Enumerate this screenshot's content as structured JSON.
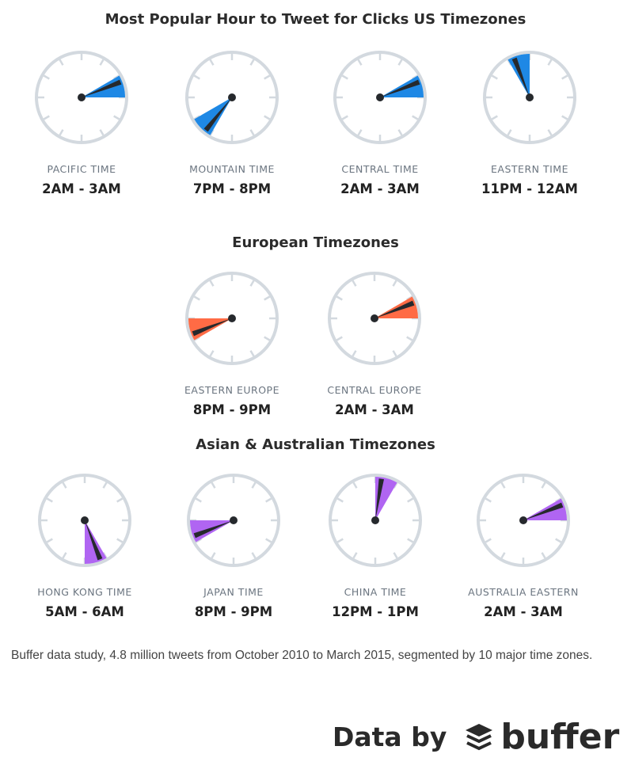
{
  "chart_data": {
    "type": "clock",
    "sections": [
      {
        "title": "Most Popular Hour to Tweet for Clicks US Timezones",
        "color": "#1e88e5",
        "clocks": [
          {
            "zone": "PACIFIC TIME",
            "range": "2AM - 3AM",
            "start_hour": 2,
            "end_hour": 3
          },
          {
            "zone": "MOUNTAIN TIME",
            "range": "7PM - 8PM",
            "start_hour": 7,
            "end_hour": 8
          },
          {
            "zone": "CENTRAL TIME",
            "range": "2AM - 3AM",
            "start_hour": 2,
            "end_hour": 3
          },
          {
            "zone": "EASTERN TIME",
            "range": "11PM - 12AM",
            "start_hour": 11,
            "end_hour": 12
          }
        ]
      },
      {
        "title": "European Timezones",
        "color": "#ff6b45",
        "clocks": [
          {
            "zone": "EASTERN EUROPE",
            "range": "8PM - 9PM",
            "start_hour": 8,
            "end_hour": 9
          },
          {
            "zone": "CENTRAL EUROPE",
            "range": "2AM - 3AM",
            "start_hour": 2,
            "end_hour": 3
          }
        ]
      },
      {
        "title": "Asian & Australian Timezones",
        "color": "#b065f2",
        "clocks": [
          {
            "zone": "HONG KONG TIME",
            "range": "5AM - 6AM",
            "start_hour": 5,
            "end_hour": 6
          },
          {
            "zone": "JAPAN TIME",
            "range": "8PM - 9PM",
            "start_hour": 8,
            "end_hour": 9
          },
          {
            "zone": "CHINA TIME",
            "range": "12PM - 1PM",
            "start_hour": 12,
            "end_hour": 1
          },
          {
            "zone": "AUSTRALIA EASTERN",
            "range": "2AM - 3AM",
            "start_hour": 2,
            "end_hour": 3
          }
        ]
      }
    ]
  },
  "footnote": "Buffer data study, 4.8 million tweets from October 2010 to March 2015, segmented by 10 major time zones.",
  "credit": {
    "prefix": "Data by",
    "brand": "buffer"
  },
  "colors": {
    "ring": "#d3d9df",
    "hand": "#26292d"
  }
}
